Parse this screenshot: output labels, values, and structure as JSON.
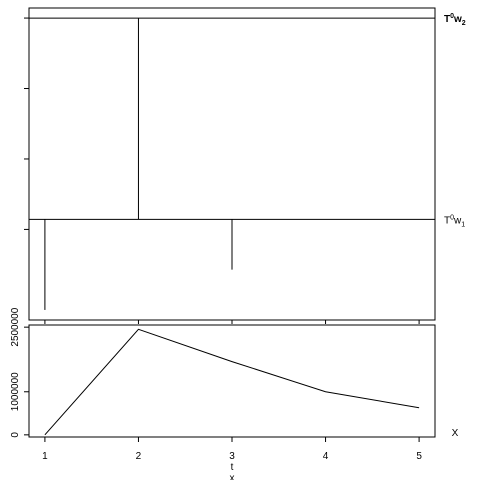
{
  "chart_data": [
    {
      "type": "line",
      "panel": "top",
      "annotations": [
        {
          "base": "T",
          "sup": "0",
          "mid": "w",
          "sub": "2",
          "bold": true,
          "y": 1.0
        },
        {
          "base": "T",
          "sup": "0",
          "mid": "w",
          "sub": "1",
          "bold": false,
          "y": 0.0
        }
      ],
      "reference_lines": [
        {
          "y": 1.0
        },
        {
          "y": 0.0
        }
      ],
      "vertical_segments": [
        {
          "x": 1,
          "y_from": 0.0,
          "y_to": -0.45
        },
        {
          "x": 2,
          "y_from": 1.0,
          "y_to": 0.0
        },
        {
          "x": 3,
          "y_from": 0.0,
          "y_to": -0.25
        }
      ],
      "xlim": [
        0.83,
        5.17
      ],
      "ylim": [
        -0.5,
        1.05
      ],
      "yticks": [
        -0.05,
        0.3,
        0.65,
        1.0
      ],
      "grid": false
    },
    {
      "type": "line",
      "panel": "bottom",
      "x": [
        1,
        2,
        3,
        4,
        5
      ],
      "series": [
        {
          "values": [
            0,
            2450000,
            1700000,
            1000000,
            630000
          ]
        }
      ],
      "xlabel": "t",
      "x_tick_labels": [
        "1",
        "2",
        "3",
        "4",
        "5"
      ],
      "y_tick_labels": [
        "0",
        "1000000",
        "2500000"
      ],
      "y_ticks": [
        0,
        1000000,
        2500000
      ],
      "right_label": "X",
      "footer_mark": "x",
      "xlim": [
        0.83,
        5.17
      ],
      "ylim": [
        -50000,
        2550000
      ],
      "grid": false
    }
  ]
}
